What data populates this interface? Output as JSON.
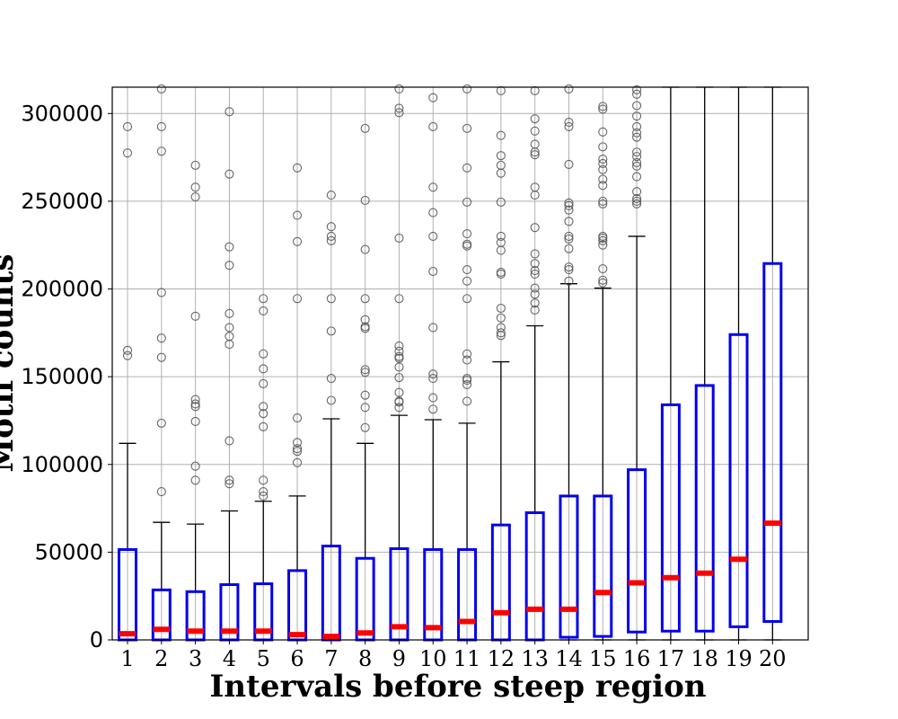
{
  "chart_data": {
    "type": "box",
    "xlabel": "Intervals before steep region",
    "ylabel": "Motif counts",
    "categories": [
      "1",
      "2",
      "3",
      "4",
      "5",
      "6",
      "7",
      "8",
      "9",
      "10",
      "11",
      "12",
      "13",
      "14",
      "15",
      "16",
      "17",
      "18",
      "19",
      "20"
    ],
    "yticks": [
      0,
      50000,
      100000,
      150000,
      200000,
      250000,
      300000
    ],
    "ylim": [
      0,
      315000
    ],
    "grid": true,
    "colors": {
      "box": "#0000ee",
      "median": "#ff0000",
      "whisker": "#000000",
      "flier": "#555555",
      "grid": "#b0b0b0"
    },
    "boxes": [
      {
        "q1": 0,
        "median": 3500,
        "q3": 51500,
        "whislo": 0,
        "whishi": 112000,
        "fliers": [
          162000,
          165000,
          277500,
          292500
        ]
      },
      {
        "q1": 0,
        "median": 6000,
        "q3": 28500,
        "whislo": 0,
        "whishi": 67000,
        "fliers": [
          84500,
          123500,
          161000,
          172000,
          198000,
          278500,
          292500,
          314000
        ]
      },
      {
        "q1": 0,
        "median": 5000,
        "q3": 27500,
        "whislo": 0,
        "whishi": 66000,
        "fliers": [
          91000,
          99000,
          124500,
          133000,
          134500,
          137000,
          184500,
          252500,
          258000,
          270500
        ]
      },
      {
        "q1": 0,
        "median": 5000,
        "q3": 31500,
        "whislo": 0,
        "whishi": 73500,
        "fliers": [
          89000,
          91000,
          113500,
          168500,
          173000,
          178000,
          186000,
          213500,
          224000,
          265500,
          301000
        ]
      },
      {
        "q1": 0,
        "median": 5000,
        "q3": 32000,
        "whislo": 0,
        "whishi": 79000,
        "fliers": [
          82000,
          84500,
          91000,
          121500,
          129000,
          133000,
          146000,
          154500,
          163000,
          187500,
          194500
        ]
      },
      {
        "q1": 0,
        "median": 3000,
        "q3": 39500,
        "whislo": 0,
        "whishi": 82000,
        "fliers": [
          101000,
          107500,
          109000,
          112500,
          126500,
          194500,
          227000,
          242000,
          269000
        ]
      },
      {
        "q1": 0,
        "median": 2000,
        "q3": 53500,
        "whislo": 0,
        "whishi": 126000,
        "fliers": [
          136500,
          149000,
          176000,
          194500,
          227500,
          230000,
          235500,
          253500
        ]
      },
      {
        "q1": 0,
        "median": 4000,
        "q3": 46500,
        "whislo": 0,
        "whishi": 112000,
        "fliers": [
          121000,
          132500,
          139500,
          152500,
          154000,
          177500,
          178500,
          182500,
          194500,
          222500,
          250500,
          291500
        ]
      },
      {
        "q1": 0,
        "median": 7500,
        "q3": 52000,
        "whislo": 0,
        "whishi": 128000,
        "fliers": [
          132500,
          135500,
          136000,
          141000,
          149500,
          155500,
          160500,
          161500,
          164500,
          167500,
          194500,
          229000,
          300500,
          303000,
          314000
        ]
      },
      {
        "q1": 0,
        "median": 7000,
        "q3": 51500,
        "whislo": 0,
        "whishi": 125500,
        "fliers": [
          131500,
          138000,
          149000,
          151500,
          178000,
          210000,
          230000,
          243500,
          258000,
          292500,
          309000
        ]
      },
      {
        "q1": 0,
        "median": 10500,
        "q3": 51500,
        "whislo": 0,
        "whishi": 123500,
        "fliers": [
          136000,
          145500,
          148000,
          149000,
          159500,
          163000,
          194500,
          204500,
          211000,
          224500,
          225500,
          231500,
          249500,
          269000,
          291500,
          314000
        ]
      },
      {
        "q1": 0,
        "median": 15500,
        "q3": 65500,
        "whislo": 0,
        "whishi": 158500,
        "fliers": [
          173500,
          175000,
          178000,
          183500,
          189000,
          208500,
          209500,
          222000,
          226500,
          230000,
          249500,
          266000,
          270500,
          276000,
          287500,
          313000
        ]
      },
      {
        "q1": 0,
        "median": 17500,
        "q3": 72500,
        "whislo": 0,
        "whishi": 179000,
        "fliers": [
          188000,
          192000,
          197000,
          200500,
          208500,
          210500,
          214500,
          220000,
          235000,
          253500,
          258000,
          276500,
          278000,
          282500,
          290000,
          297000,
          313000
        ]
      },
      {
        "q1": 1500,
        "median": 17500,
        "q3": 82000,
        "whislo": 0,
        "whishi": 203000,
        "fliers": [
          204500,
          211000,
          212500,
          223000,
          228500,
          230000,
          238500,
          245000,
          247500,
          249000,
          271000,
          292500,
          295000,
          314000
        ]
      },
      {
        "q1": 2000,
        "median": 27000,
        "q3": 82000,
        "whislo": 0,
        "whishi": 200500,
        "fliers": [
          203500,
          205000,
          211500,
          225000,
          227500,
          229000,
          230000,
          248500,
          250000,
          259000,
          262500,
          268000,
          271500,
          274000,
          281000,
          289500,
          302500,
          304000
        ]
      },
      {
        "q1": 4500,
        "median": 32500,
        "q3": 97000,
        "whislo": 0,
        "whishi": 230000,
        "fliers": [
          248500,
          250000,
          251500,
          255500,
          264000,
          270000,
          272000,
          275500,
          278000,
          286500,
          289000,
          292500,
          298500,
          304500,
          311000,
          313500
        ]
      },
      {
        "q1": 5000,
        "median": 35500,
        "q3": 134000,
        "whislo": 0,
        "whishi": 315000,
        "fliers": []
      },
      {
        "q1": 5000,
        "median": 38000,
        "q3": 145000,
        "whislo": 0,
        "whishi": 315000,
        "fliers": []
      },
      {
        "q1": 7500,
        "median": 46000,
        "q3": 174000,
        "whislo": 0,
        "whishi": 315000,
        "fliers": []
      },
      {
        "q1": 10500,
        "median": 66500,
        "q3": 214500,
        "whislo": 0,
        "whishi": 315000,
        "fliers": []
      }
    ]
  }
}
